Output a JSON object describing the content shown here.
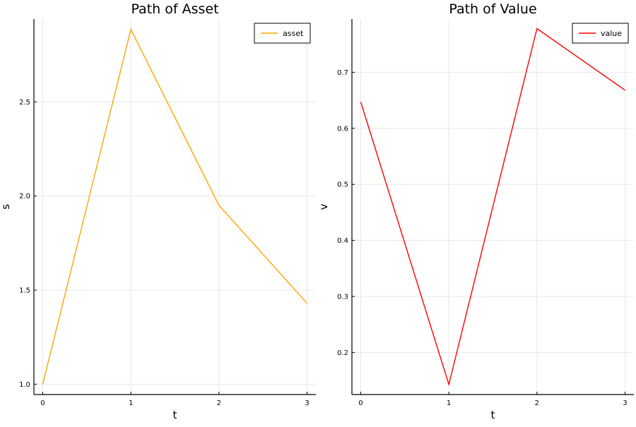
{
  "chart_data": [
    {
      "type": "line",
      "title": "Path of Asset",
      "xlabel": "t",
      "ylabel": "s",
      "x": [
        0,
        1,
        2,
        3
      ],
      "series": [
        {
          "name": "asset",
          "values": [
            1.0,
            2.885,
            1.95,
            1.43
          ],
          "color": "#FFA500"
        }
      ],
      "xlim": [
        -0.1,
        3.1
      ],
      "ylim": [
        0.945,
        2.94
      ],
      "xticks": [
        0,
        1,
        2,
        3
      ],
      "yticks": [
        1.0,
        1.5,
        2.0,
        2.5
      ],
      "xtick_labels": [
        "0",
        "1",
        "2",
        "3"
      ],
      "ytick_labels": [
        "1.0",
        "1.5",
        "2.0",
        "2.5"
      ],
      "grid": true,
      "legend_position": "top-right"
    },
    {
      "type": "line",
      "title": "Path of Value",
      "xlabel": "t",
      "ylabel": "v",
      "x": [
        0,
        1,
        2,
        3
      ],
      "series": [
        {
          "name": "value",
          "values": [
            0.647,
            0.143,
            0.778,
            0.668
          ],
          "color": "#FF0000"
        }
      ],
      "xlim": [
        -0.1,
        3.1
      ],
      "ylim": [
        0.125,
        0.795
      ],
      "xticks": [
        0,
        1,
        2,
        3
      ],
      "yticks": [
        0.2,
        0.3,
        0.4,
        0.5,
        0.6,
        0.7
      ],
      "xtick_labels": [
        "0",
        "1",
        "2",
        "3"
      ],
      "ytick_labels": [
        "0.2",
        "0.3",
        "0.4",
        "0.5",
        "0.6",
        "0.7"
      ],
      "grid": true,
      "legend_position": "top-right"
    }
  ]
}
